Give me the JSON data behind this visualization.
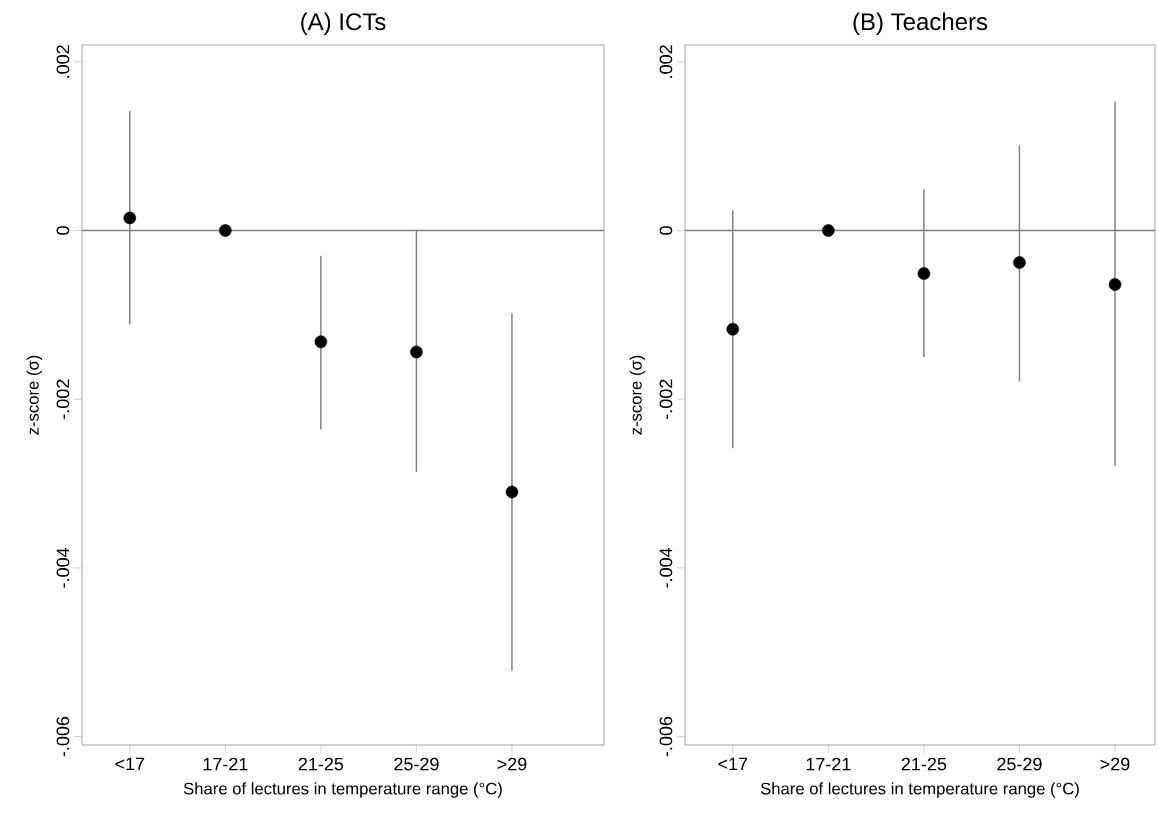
{
  "chart_data": [
    {
      "type": "scatter",
      "title": "(A) ICTs",
      "xlabel": "Share of lectures in temperature range (°C)",
      "ylabel": "z-score (σ)",
      "categories": [
        "<17",
        "17-21",
        "21-25",
        "25-29",
        ">29"
      ],
      "series": [
        {
          "color": "#000000",
          "values": [
            0.00015,
            0,
            -0.00132,
            -0.00144,
            -0.0031
          ],
          "errors": [
            [
              -0.00111,
              0.00142
            ],
            null,
            [
              -0.00236,
              -0.0003
            ],
            [
              -0.00286,
              0
            ],
            [
              -0.00522,
              -0.00098
            ]
          ]
        }
      ],
      "marker": "circle",
      "ylim": [
        -0.0061,
        0.0022
      ],
      "yticks": [
        {
          "value": 0.002,
          "label": ".002"
        },
        0,
        {
          "value": -0.002,
          "label": "-.002"
        },
        {
          "value": -0.004,
          "label": "-.004"
        },
        {
          "value": -0.006,
          "label": "-.006"
        }
      ],
      "ref_lines": [
        {
          "axis": "y",
          "value": 0,
          "color": "#808080"
        }
      ]
    },
    {
      "type": "scatter",
      "title": "(B) Teachers",
      "xlabel": "Share of lectures in temperature range (°C)",
      "ylabel": "z-score (σ)",
      "categories": [
        "<17",
        "17-21",
        "21-25",
        "25-29",
        ">29"
      ],
      "series": [
        {
          "color": "#000000",
          "values": [
            -0.00117,
            0,
            -0.00051,
            -0.00038,
            -0.00064
          ],
          "errors": [
            [
              -0.00258,
              0.00024
            ],
            null,
            [
              -0.0015,
              0.00049
            ],
            [
              -0.00179,
              0.00101
            ],
            [
              -0.00279,
              0.00153
            ]
          ]
        }
      ],
      "marker": "circle",
      "ylim": [
        -0.0061,
        0.0022
      ],
      "yticks": [
        {
          "value": 0.002,
          "label": ".002"
        },
        0,
        {
          "value": -0.002,
          "label": "-.002"
        },
        {
          "value": -0.004,
          "label": "-.004"
        },
        {
          "value": -0.006,
          "label": "-.006"
        }
      ],
      "ref_lines": [
        {
          "axis": "y",
          "value": 0,
          "color": "#808080"
        }
      ]
    }
  ]
}
